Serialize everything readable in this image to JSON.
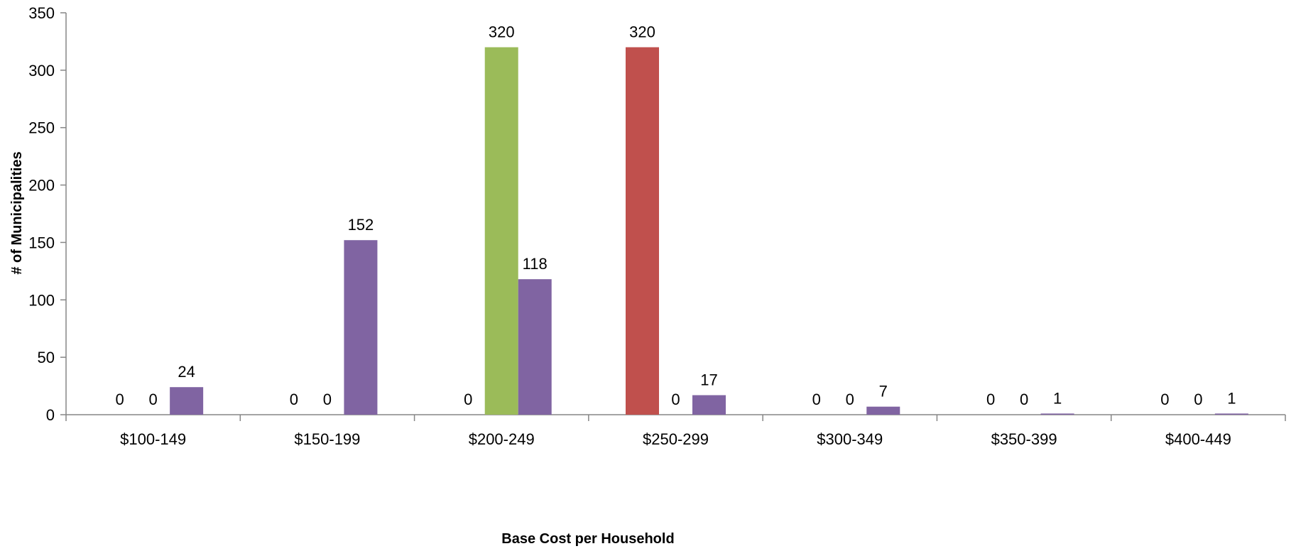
{
  "chart_data": {
    "type": "bar",
    "xlabel": "Base Cost per Household",
    "ylabel": "# of Municipalities",
    "ylim": [
      0,
      350
    ],
    "yticks": [
      0,
      50,
      100,
      150,
      200,
      250,
      300,
      350
    ],
    "grid": false,
    "legend": "none",
    "categories": [
      "$100-149",
      "$150-199",
      "$200-249",
      "$250-299",
      "$300-349",
      "$350-399",
      "$400-449"
    ],
    "series": [
      {
        "color": "#9BBB59",
        "values": [
          0,
          0,
          0,
          0,
          0,
          0,
          0
        ]
      },
      {
        "color": "#C0504D",
        "values": [
          0,
          0,
          320,
          320,
          0,
          0,
          0
        ]
      },
      {
        "color": "#8064A2",
        "values": [
          24,
          152,
          118,
          17,
          7,
          1,
          1
        ]
      }
    ],
    "data_labels": [
      [
        "0",
        "0",
        "24"
      ],
      [
        "0",
        "0",
        "152"
      ],
      [
        "0",
        "320",
        "118"
      ],
      [
        "320",
        "0",
        "17"
      ],
      [
        "0",
        "0",
        "7"
      ],
      [
        "0",
        "0",
        "1"
      ],
      [
        "0",
        "0",
        "1"
      ]
    ],
    "bar_colors": [
      [
        "#9BBB59",
        "#C0504D",
        "#8064A2"
      ],
      [
        "#9BBB59",
        "#C0504D",
        "#8064A2"
      ],
      [
        "#9BBB59",
        "#9BBB59",
        "#8064A2"
      ],
      [
        "#C0504D",
        "#C0504D",
        "#8064A2"
      ],
      [
        "#9BBB59",
        "#C0504D",
        "#8064A2"
      ],
      [
        "#9BBB59",
        "#C0504D",
        "#8064A2"
      ],
      [
        "#9BBB59",
        "#C0504D",
        "#8064A2"
      ]
    ],
    "bar_values": [
      [
        0,
        0,
        24
      ],
      [
        0,
        0,
        152
      ],
      [
        0,
        320,
        118
      ],
      [
        320,
        0,
        17
      ],
      [
        0,
        0,
        7
      ],
      [
        0,
        0,
        1
      ],
      [
        0,
        0,
        1
      ]
    ]
  }
}
